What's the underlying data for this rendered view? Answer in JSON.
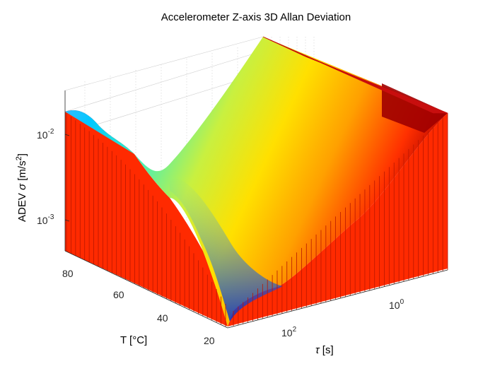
{
  "chart_data": {
    "type": "surface",
    "title": "Accelerometer Z-axis 3D Allan Deviation",
    "zlabel": "ADEV",
    "zlabel_symbol": "σ",
    "zlabel_unit_pre": "[m/s",
    "zlabel_unit_exp": "2",
    "zlabel_unit_post": "]",
    "ylabel": "T [°C]",
    "xlabel_symbol": "τ",
    "xlabel_unit": "[s]",
    "zscale": "log",
    "xscale": "log",
    "z_ticks": [
      {
        "base": "10",
        "exp": "-2",
        "value": 0.01
      },
      {
        "base": "10",
        "exp": "-3",
        "value": 0.001
      }
    ],
    "x_ticks": [
      {
        "base": "10",
        "exp": "0",
        "value": 1
      },
      {
        "base": "10",
        "exp": "2",
        "value": 100
      }
    ],
    "y_ticks": [
      {
        "label": "80",
        "value": 80
      },
      {
        "label": "60",
        "value": 60
      },
      {
        "label": "40",
        "value": 40
      },
      {
        "label": "20",
        "value": 20
      }
    ],
    "temperature_range": [
      20,
      90
    ],
    "tau_range": [
      0.01,
      1000
    ],
    "adev_range": [
      0.0003,
      0.03
    ],
    "colormap": "jet",
    "series": [
      {
        "temperature": 20,
        "tau": [
          0.01,
          0.1,
          1,
          10,
          100,
          1000
        ],
        "adev": [
          0.012,
          0.003,
          0.0011,
          0.0005,
          0.0009,
          0.003
        ]
      },
      {
        "temperature": 90,
        "tau": [
          0.01,
          0.1,
          1,
          10,
          100,
          1000
        ],
        "adev": [
          0.018,
          0.008,
          0.003,
          0.001,
          0.0012,
          0.004
        ]
      }
    ]
  }
}
